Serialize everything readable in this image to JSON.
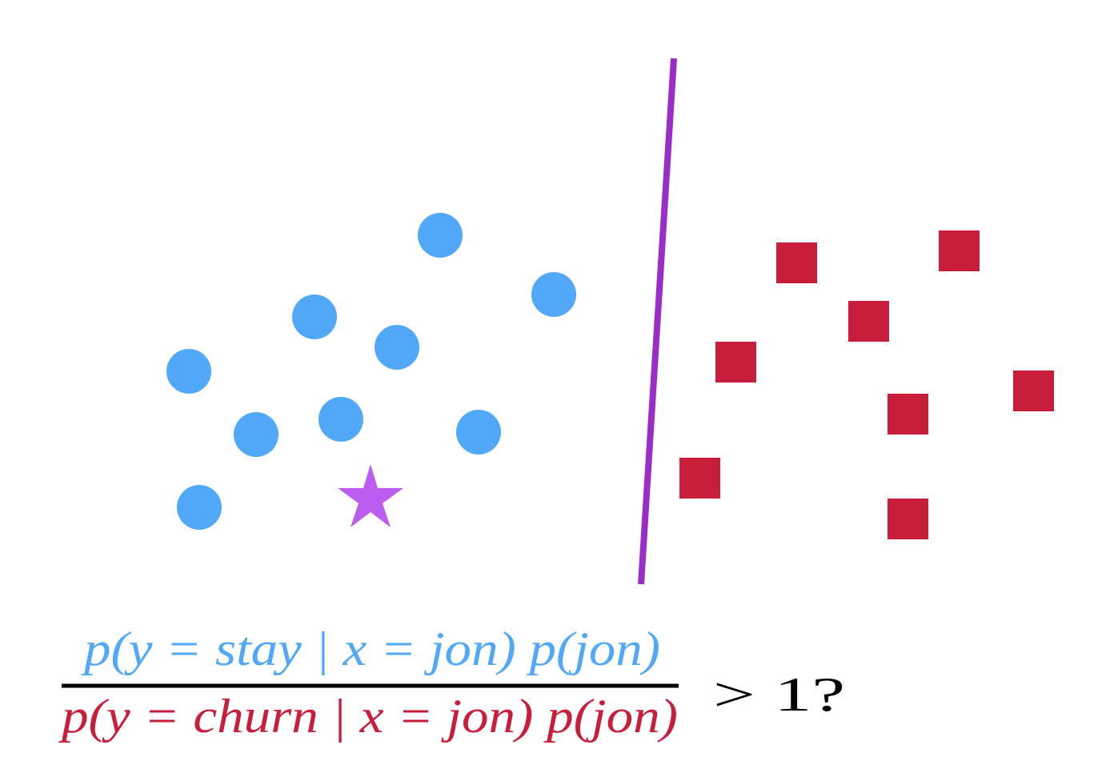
{
  "colors": {
    "background": "#ffffff",
    "stay": "#52a8f8",
    "churn": "#c81e3c",
    "boundary": "#9a2cc8",
    "query": "#bd5cf0",
    "text": "#000000"
  },
  "legend_symbols": {
    "stay_marker": "circle",
    "churn_marker": "square",
    "query_marker": "star"
  },
  "formula": {
    "numerator": "p(y = stay | x = jon) p(jon)",
    "denominator": "p(y = churn | x = jon) p(jon)",
    "comparison": "> 1?"
  }
}
